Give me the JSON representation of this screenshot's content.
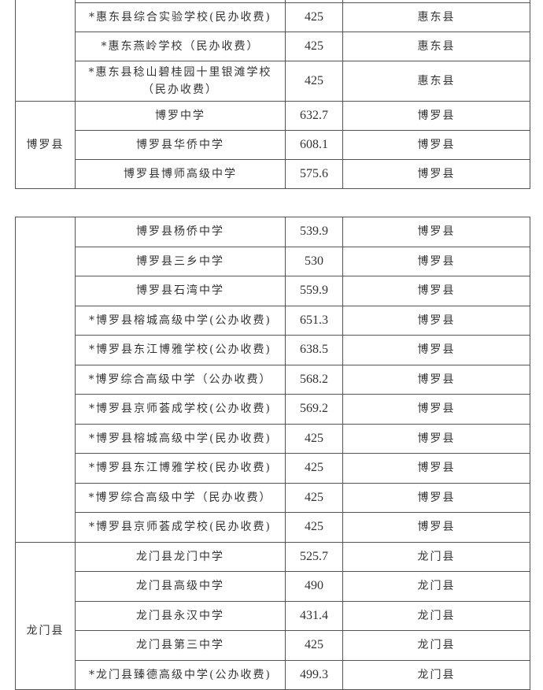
{
  "table1": {
    "rows": [
      {
        "school": "",
        "score": "",
        "location": ""
      },
      {
        "school": "*惠东县综合实验学校(民办收费)",
        "score": "425",
        "location": "惠东县"
      },
      {
        "school": "*惠东燕岭学校（民办收费）",
        "score": "425",
        "location": "惠东县"
      },
      {
        "school": "*惠东县稔山碧桂园十里银滩学校（民办收费）",
        "score": "425",
        "location": "惠东县"
      }
    ],
    "group_boluo": {
      "district": "博罗县",
      "rows": [
        {
          "school": "博罗中学",
          "score": "632.7",
          "location": "博罗县"
        },
        {
          "school": "博罗县华侨中学",
          "score": "608.1",
          "location": "博罗县"
        },
        {
          "school": "博罗县博师高级中学",
          "score": "575.6",
          "location": "博罗县"
        }
      ]
    }
  },
  "table2": {
    "group_boluo": {
      "rows": [
        {
          "school": "博罗县杨侨中学",
          "score": "539.9",
          "location": "博罗县"
        },
        {
          "school": "博罗县三乡中学",
          "score": "530",
          "location": "博罗县"
        },
        {
          "school": "博罗县石湾中学",
          "score": "559.9",
          "location": "博罗县"
        },
        {
          "school": "*博罗县榕城高级中学(公办收费)",
          "score": "651.3",
          "location": "博罗县"
        },
        {
          "school": "*博罗县东江博雅学校(公办收费)",
          "score": "638.5",
          "location": "博罗县"
        },
        {
          "school": "*博罗综合高级中学（公办收费）",
          "score": "568.2",
          "location": "博罗县"
        },
        {
          "school": "*博罗县京师荟成学校(公办收费)",
          "score": "569.2",
          "location": "博罗县"
        },
        {
          "school": "*博罗县榕城高级中学(民办收费)",
          "score": "425",
          "location": "博罗县"
        },
        {
          "school": "*博罗县东江博雅学校(民办收费)",
          "score": "425",
          "location": "博罗县"
        },
        {
          "school": "*博罗综合高级中学（民办收费）",
          "score": "425",
          "location": "博罗县"
        },
        {
          "school": "*博罗县京师荟成学校(民办收费)",
          "score": "425",
          "location": "博罗县"
        }
      ]
    },
    "group_longmen": {
      "district": "龙门县",
      "rows": [
        {
          "school": "龙门县龙门中学",
          "score": "525.7",
          "location": "龙门县"
        },
        {
          "school": "龙门县高级中学",
          "score": "490",
          "location": "龙门县"
        },
        {
          "school": "龙门县永汉中学",
          "score": "431.4",
          "location": "龙门县"
        },
        {
          "school": "龙门县第三中学",
          "score": "425",
          "location": "龙门县"
        },
        {
          "school": "*龙门县臻德高级中学(公办收费)",
          "score": "499.3",
          "location": "龙门县"
        }
      ]
    }
  }
}
